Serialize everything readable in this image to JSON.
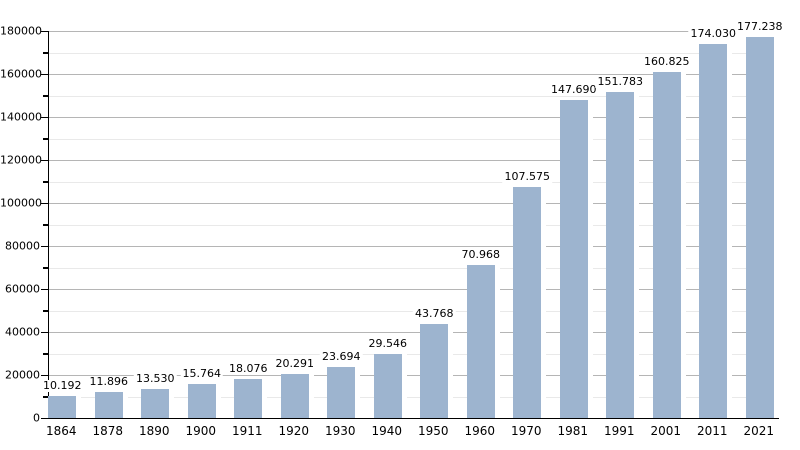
{
  "chart_data": {
    "type": "bar",
    "title": "",
    "xlabel": "",
    "ylabel": "",
    "categories": [
      "1864",
      "1878",
      "1890",
      "1900",
      "1911",
      "1920",
      "1930",
      "1940",
      "1950",
      "1960",
      "1970",
      "1981",
      "1991",
      "2001",
      "2011",
      "2021"
    ],
    "values": [
      10192,
      11896,
      13530,
      15764,
      18076,
      20291,
      23694,
      29546,
      43768,
      70968,
      107575,
      147690,
      151783,
      160825,
      174030,
      177238
    ],
    "value_labels": [
      "10.192",
      "11.896",
      "13.530",
      "15.764",
      "18.076",
      "20.291",
      "23.694",
      "29.546",
      "43.768",
      "70.968",
      "107.575",
      "147.690",
      "151.783",
      "160.825",
      "174.030",
      "177.238"
    ],
    "ylim": [
      0,
      180000
    ],
    "y_tick_values": [
      0,
      20000,
      40000,
      60000,
      80000,
      100000,
      120000,
      140000,
      160000,
      180000
    ],
    "y_tick_labels": [
      "0",
      "20000",
      "40000",
      "60000",
      "80000",
      "100000",
      "120000",
      "140000",
      "160000",
      "180000"
    ],
    "y_minor_tick_values": [
      10000,
      30000,
      50000,
      70000,
      90000,
      110000,
      130000,
      150000,
      170000
    ],
    "grid": true,
    "legend": false,
    "colors": {
      "bar": "#9db4cf",
      "grid_major": "#b5b5b5",
      "grid_minor": "#e9e9e9",
      "axis": "#000000",
      "text": "#000000",
      "background": "#ffffff"
    }
  }
}
